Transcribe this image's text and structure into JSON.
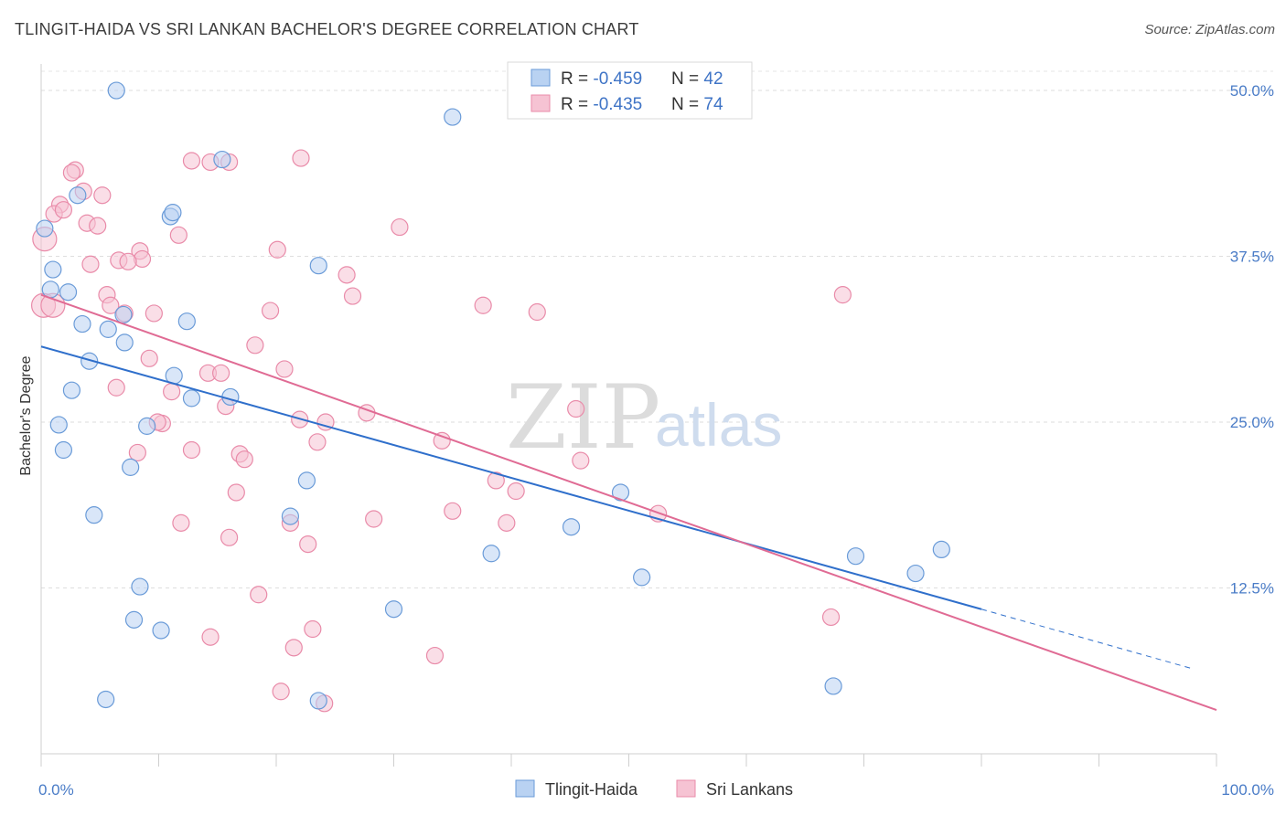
{
  "title": "TLINGIT-HAIDA VS SRI LANKAN BACHELOR'S DEGREE CORRELATION CHART",
  "source": "Source: ZipAtlas.com",
  "watermark": {
    "zip": "ZIP",
    "atlas": "atlas"
  },
  "colors": {
    "blue": "#6a9bd8",
    "blue_fill": "#b9d2f2",
    "blue_line": "#2f6fcb",
    "pink": "#e98ba9",
    "pink_fill": "#f6c3d3",
    "pink_line": "#e06b94"
  },
  "legend": {
    "rows": [
      {
        "r_label": "R = ",
        "r_value": "-0.459",
        "n_label": "N = ",
        "n_value": "42"
      },
      {
        "r_label": "R = ",
        "r_value": "-0.435",
        "n_label": "N = ",
        "n_value": "74"
      }
    ]
  },
  "chart_data": {
    "type": "scatter",
    "title": "TLINGIT-HAIDA VS SRI LANKAN BACHELOR'S DEGREE CORRELATION CHART",
    "xlabel": "",
    "ylabel": "Bachelor's Degree",
    "xlim": [
      0,
      100
    ],
    "ylim": [
      0,
      52
    ],
    "x_tick_labels": [
      "0.0%",
      "100.0%"
    ],
    "y_ticks": [
      12.5,
      25.0,
      37.5,
      50.0
    ],
    "y_tick_labels": [
      "12.5%",
      "25.0%",
      "37.5%",
      "50.0%"
    ],
    "grid": "horizontal dashed",
    "legend_position": "top-center",
    "series": [
      {
        "name": "Tlingit-Haida",
        "r": -0.459,
        "n": 42,
        "trend": {
          "x": [
            0,
            80
          ],
          "y": [
            30.7,
            10.9
          ],
          "dashed_extension": {
            "x": [
              80,
              98
            ],
            "y": [
              10.9,
              6.4
            ]
          }
        },
        "points": [
          [
            6.4,
            50.0
          ],
          [
            35.0,
            48.0
          ],
          [
            15.4,
            44.8
          ],
          [
            3.1,
            42.1
          ],
          [
            11.0,
            40.5
          ],
          [
            11.2,
            40.8
          ],
          [
            0.3,
            39.6
          ],
          [
            23.6,
            36.8
          ],
          [
            1.0,
            36.5
          ],
          [
            0.8,
            35.0
          ],
          [
            2.3,
            34.8
          ],
          [
            7.0,
            33.1
          ],
          [
            3.5,
            32.4
          ],
          [
            12.4,
            32.6
          ],
          [
            5.7,
            32.0
          ],
          [
            7.1,
            31.0
          ],
          [
            4.1,
            29.6
          ],
          [
            11.3,
            28.5
          ],
          [
            2.6,
            27.4
          ],
          [
            12.8,
            26.8
          ],
          [
            16.1,
            26.9
          ],
          [
            1.5,
            24.8
          ],
          [
            9.0,
            24.7
          ],
          [
            1.9,
            22.9
          ],
          [
            7.6,
            21.6
          ],
          [
            22.6,
            20.6
          ],
          [
            49.3,
            19.7
          ],
          [
            4.5,
            18.0
          ],
          [
            21.2,
            17.9
          ],
          [
            45.1,
            17.1
          ],
          [
            38.3,
            15.1
          ],
          [
            76.6,
            15.4
          ],
          [
            69.3,
            14.9
          ],
          [
            74.4,
            13.6
          ],
          [
            51.1,
            13.3
          ],
          [
            8.4,
            12.6
          ],
          [
            30.0,
            10.9
          ],
          [
            7.9,
            10.1
          ],
          [
            10.2,
            9.3
          ],
          [
            67.4,
            5.1
          ],
          [
            5.5,
            4.1
          ],
          [
            23.6,
            4.0
          ]
        ]
      },
      {
        "name": "Sri Lankans",
        "r": -0.435,
        "n": 74,
        "trend": {
          "x": [
            0,
            100
          ],
          "y": [
            34.6,
            3.3
          ]
        },
        "points": [
          [
            22.1,
            44.9
          ],
          [
            12.8,
            44.7
          ],
          [
            14.4,
            44.6
          ],
          [
            16.0,
            44.6
          ],
          [
            2.9,
            44.0
          ],
          [
            2.6,
            43.8
          ],
          [
            3.6,
            42.4
          ],
          [
            5.2,
            42.1
          ],
          [
            1.6,
            41.4
          ],
          [
            1.1,
            40.7
          ],
          [
            1.9,
            41.0
          ],
          [
            3.9,
            40.0
          ],
          [
            4.8,
            39.8
          ],
          [
            30.5,
            39.7
          ],
          [
            11.7,
            39.1
          ],
          [
            0.3,
            38.8
          ],
          [
            20.1,
            38.0
          ],
          [
            8.4,
            37.9
          ],
          [
            6.6,
            37.2
          ],
          [
            8.6,
            37.3
          ],
          [
            7.4,
            37.1
          ],
          [
            4.2,
            36.9
          ],
          [
            26.0,
            36.1
          ],
          [
            26.5,
            34.5
          ],
          [
            5.6,
            34.6
          ],
          [
            0.2,
            33.8
          ],
          [
            5.9,
            33.8
          ],
          [
            37.6,
            33.8
          ],
          [
            42.2,
            33.3
          ],
          [
            19.5,
            33.4
          ],
          [
            9.6,
            33.2
          ],
          [
            7.1,
            33.2
          ],
          [
            18.2,
            30.8
          ],
          [
            9.2,
            29.8
          ],
          [
            20.7,
            29.0
          ],
          [
            14.2,
            28.7
          ],
          [
            15.3,
            28.7
          ],
          [
            6.4,
            27.6
          ],
          [
            11.1,
            27.3
          ],
          [
            15.7,
            26.2
          ],
          [
            45.5,
            26.0
          ],
          [
            27.7,
            25.7
          ],
          [
            22.0,
            25.2
          ],
          [
            24.2,
            25.0
          ],
          [
            10.3,
            24.9
          ],
          [
            9.9,
            25.0
          ],
          [
            34.1,
            23.6
          ],
          [
            23.5,
            23.5
          ],
          [
            12.8,
            22.9
          ],
          [
            8.2,
            22.7
          ],
          [
            16.9,
            22.6
          ],
          [
            17.3,
            22.2
          ],
          [
            45.9,
            22.1
          ],
          [
            38.7,
            20.6
          ],
          [
            40.4,
            19.8
          ],
          [
            16.6,
            19.7
          ],
          [
            35.0,
            18.3
          ],
          [
            52.5,
            18.1
          ],
          [
            28.3,
            17.7
          ],
          [
            39.6,
            17.4
          ],
          [
            11.9,
            17.4
          ],
          [
            21.2,
            17.4
          ],
          [
            16.0,
            16.3
          ],
          [
            22.7,
            15.8
          ],
          [
            18.5,
            12.0
          ],
          [
            68.2,
            34.6
          ],
          [
            67.2,
            10.3
          ],
          [
            23.1,
            9.4
          ],
          [
            14.4,
            8.8
          ],
          [
            21.5,
            8.0
          ],
          [
            33.5,
            7.4
          ],
          [
            20.4,
            4.7
          ],
          [
            24.1,
            3.8
          ],
          [
            1.0,
            33.8
          ]
        ]
      }
    ]
  },
  "bottom_legend": [
    "Tlingit-Haida",
    "Sri Lankans"
  ]
}
